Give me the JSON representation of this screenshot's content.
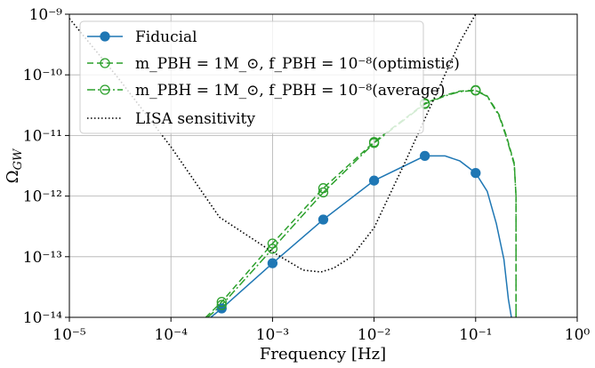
{
  "chart_data": {
    "type": "line",
    "xscale": "log",
    "yscale": "log",
    "xlim": [
      1e-05,
      1
    ],
    "ylim": [
      1e-14,
      1e-09
    ],
    "grid": true,
    "xlabel": "Frequency [Hz]",
    "ylabel": "Ω_GW",
    "x_ticks": [
      {
        "value": 1e-05,
        "label": "10⁻⁵"
      },
      {
        "value": 0.0001,
        "label": "10⁻⁴"
      },
      {
        "value": 0.001,
        "label": "10⁻³"
      },
      {
        "value": 0.01,
        "label": "10⁻²"
      },
      {
        "value": 0.1,
        "label": "10⁻¹"
      },
      {
        "value": 1,
        "label": "10⁰"
      }
    ],
    "y_ticks": [
      {
        "value": 1e-14,
        "label": "10⁻¹⁴"
      },
      {
        "value": 1e-13,
        "label": "10⁻¹³"
      },
      {
        "value": 1e-12,
        "label": "10⁻¹²"
      },
      {
        "value": 1e-11,
        "label": "10⁻¹¹"
      },
      {
        "value": 1e-10,
        "label": "10⁻¹⁰"
      },
      {
        "value": 1e-09,
        "label": "10⁻⁹"
      }
    ],
    "legend_position": "top-left",
    "series": [
      {
        "name": "Fiducial",
        "color": "#1f77b4",
        "style": "solid",
        "marker": "filled-circle",
        "x": [
          0.000247,
          0.000316,
          0.001,
          0.00316,
          0.01,
          0.0316,
          0.05,
          0.07,
          0.1,
          0.13,
          0.16,
          0.19,
          0.21,
          0.225
        ],
        "y": [
          1e-14,
          1.4e-14,
          7.8e-14,
          4.1e-13,
          1.8e-12,
          4.6e-12,
          4.6e-12,
          3.8e-12,
          2.4e-12,
          1.2e-12,
          3.5e-13,
          9e-14,
          2e-14,
          1e-14
        ],
        "markers_x": [
          0.000316,
          0.001,
          0.00316,
          0.01,
          0.0316,
          0.1
        ],
        "markers_y": [
          1.4e-14,
          7.8e-14,
          4.1e-13,
          1.8e-12,
          4.6e-12,
          2.4e-12
        ]
      },
      {
        "name": "m_PBH = 1M_⊙, f_PBH = 10⁻⁸(optimistic)",
        "color": "#2ca02c",
        "style": "dashed",
        "marker": "open-circle",
        "x": [
          0.00022,
          0.000316,
          0.001,
          0.00316,
          0.01,
          0.0316,
          0.05,
          0.07,
          0.1,
          0.13,
          0.17,
          0.2,
          0.24,
          0.25,
          0.25
        ],
        "y": [
          1e-14,
          1.8e-14,
          1.65e-13,
          1.35e-12,
          7.8e-12,
          3.4e-11,
          4.6e-11,
          5.4e-11,
          5.6e-11,
          4.5e-11,
          2.2e-11,
          1e-11,
          3.5e-12,
          1e-12,
          1e-14
        ],
        "markers_x": [
          0.000316,
          0.001,
          0.00316,
          0.01,
          0.0316,
          0.1
        ],
        "markers_y": [
          1.8e-14,
          1.65e-13,
          1.35e-12,
          7.8e-12,
          3.4e-11,
          5.6e-11
        ]
      },
      {
        "name": "m_PBH = 1M_⊙, f_PBH = 10⁻⁸(average)",
        "color": "#2ca02c",
        "style": "dashdot",
        "marker": "open-circle",
        "x": [
          0.00023,
          0.000316,
          0.001,
          0.00316,
          0.01,
          0.0316,
          0.05,
          0.07,
          0.1,
          0.13,
          0.17,
          0.2,
          0.24,
          0.25,
          0.25
        ],
        "y": [
          1e-14,
          1.6e-14,
          1.35e-13,
          1.15e-12,
          7.5e-12,
          3.3e-11,
          4.5e-11,
          5.3e-11,
          5.5e-11,
          4.4e-11,
          2.1e-11,
          9.5e-12,
          3.3e-12,
          1e-12,
          1e-14
        ],
        "markers_x": [
          0.000316,
          0.001,
          0.00316,
          0.01,
          0.0316,
          0.1
        ],
        "markers_y": [
          1.6e-14,
          1.35e-13,
          1.15e-12,
          7.5e-12,
          3.3e-11,
          5.5e-11
        ]
      },
      {
        "name": "LISA sensitivity",
        "color": "#000000",
        "style": "dotted",
        "marker": "none",
        "x": [
          1e-05,
          3e-05,
          0.0001,
          0.0003,
          0.001,
          0.002,
          0.003,
          0.004,
          0.006,
          0.01,
          0.02,
          0.04,
          0.07,
          0.1
        ],
        "y": [
          8.5e-10,
          9e-11,
          6.5e-12,
          4.5e-13,
          1.2e-13,
          6e-14,
          5.6e-14,
          6.5e-14,
          1e-13,
          3e-13,
          3.5e-12,
          4.5e-11,
          3.5e-10,
          1e-09
        ]
      }
    ]
  }
}
